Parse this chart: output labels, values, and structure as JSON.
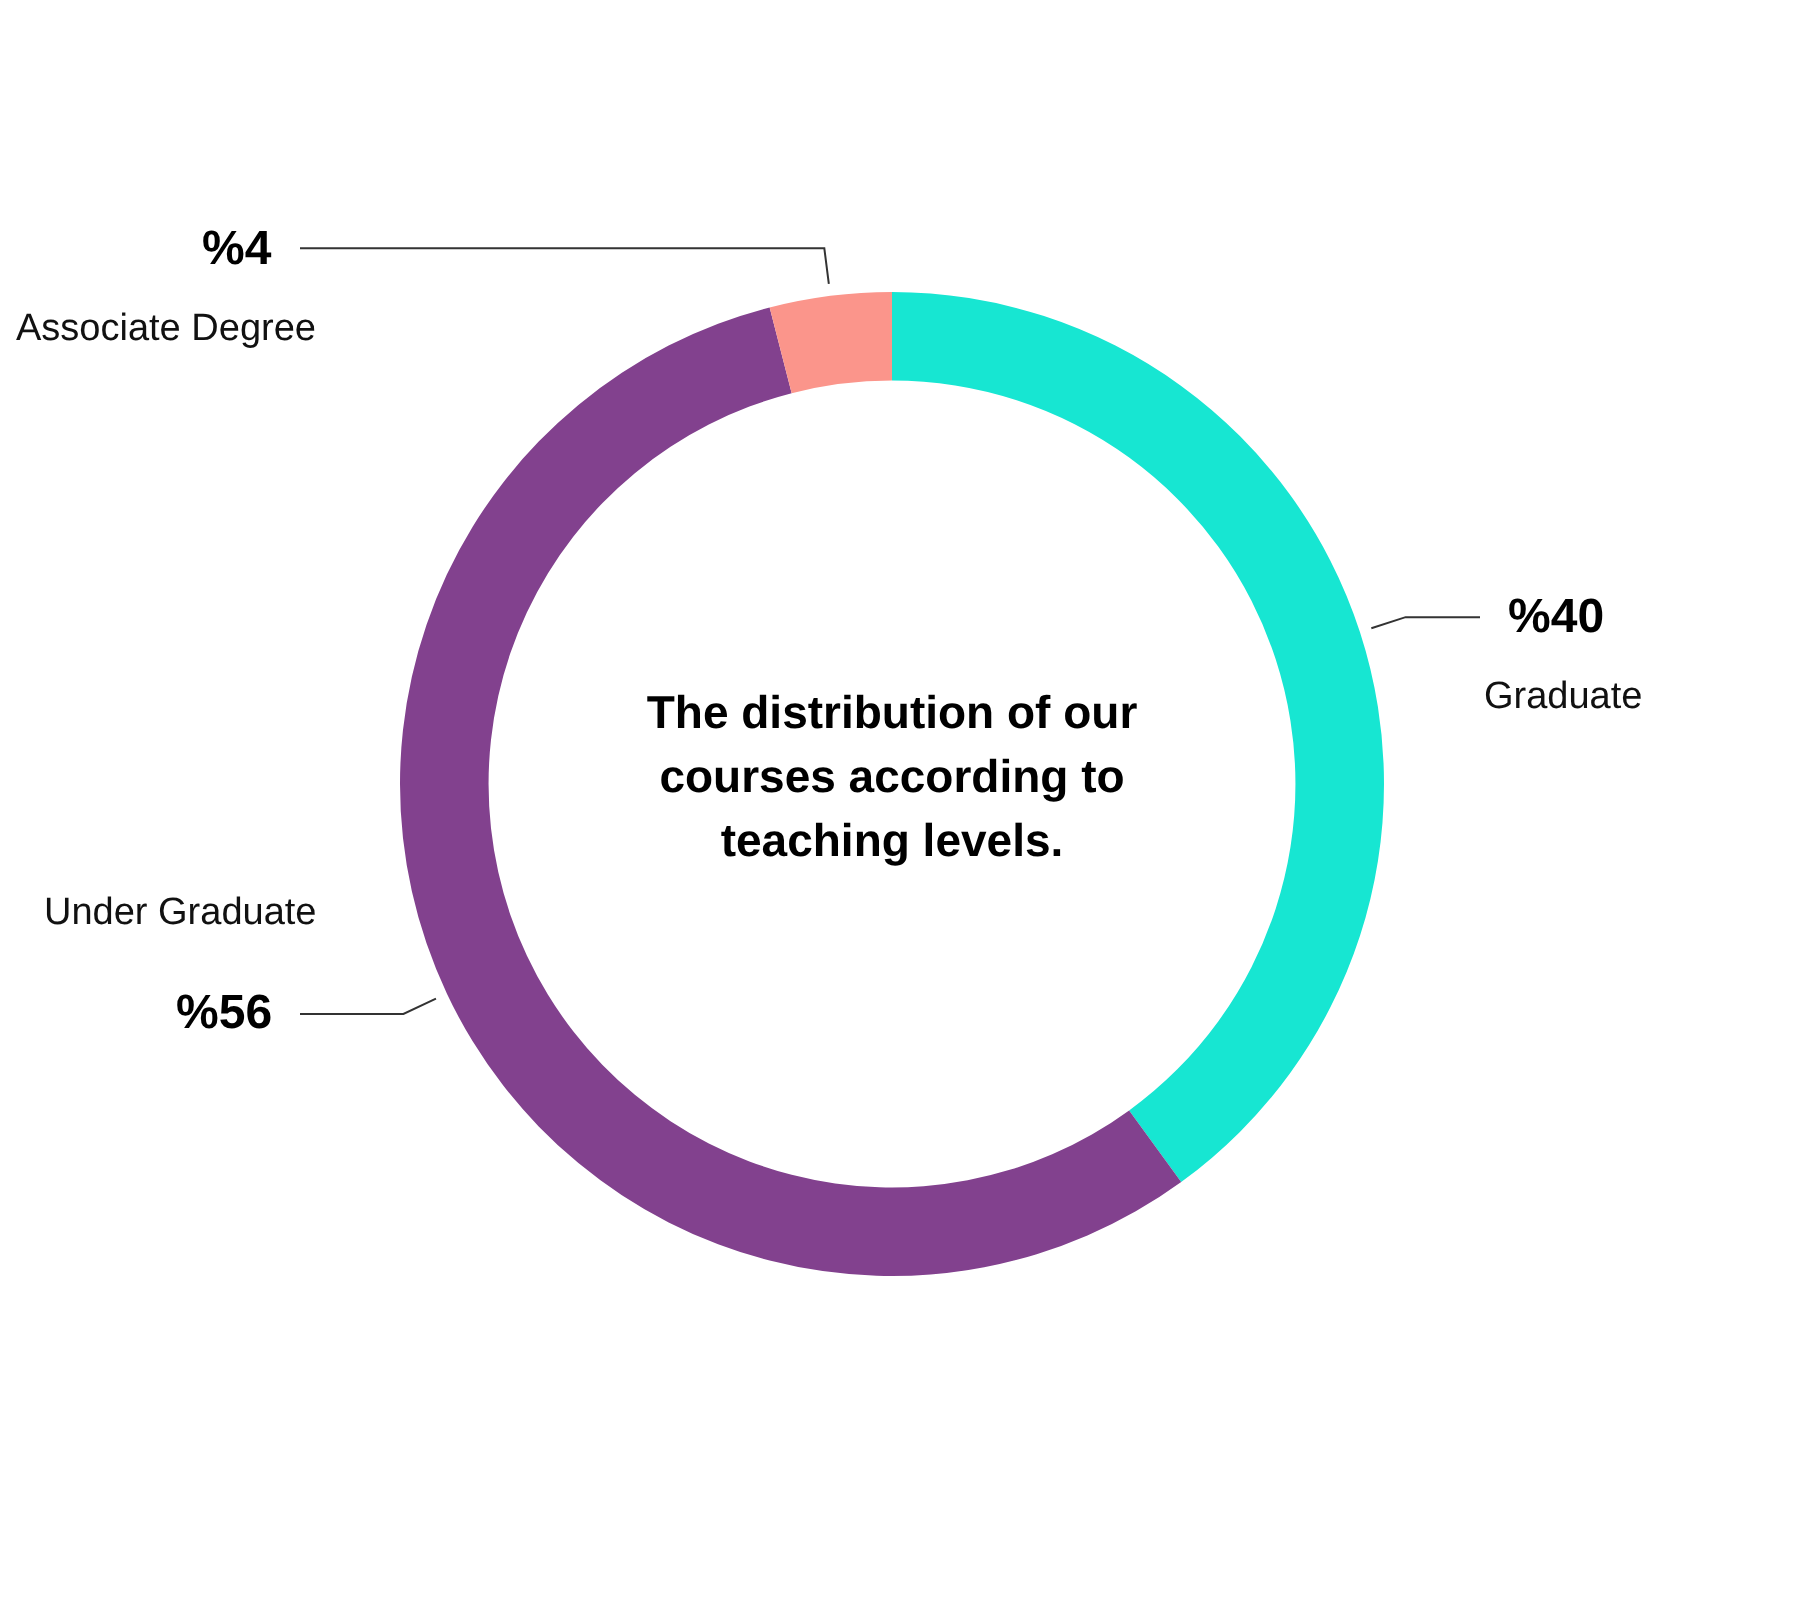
{
  "chart_data": {
    "type": "donut",
    "title": "The distribution of our courses according to teaching levels.",
    "categories": [
      "Graduate",
      "Under Graduate",
      "Associate Degree"
    ],
    "values": [
      40,
      56,
      4
    ],
    "colors": [
      "#17e6d2",
      "#82418e",
      "#fb958b"
    ],
    "value_labels": [
      "%40",
      "%56",
      "%4"
    ],
    "legend": false
  }
}
